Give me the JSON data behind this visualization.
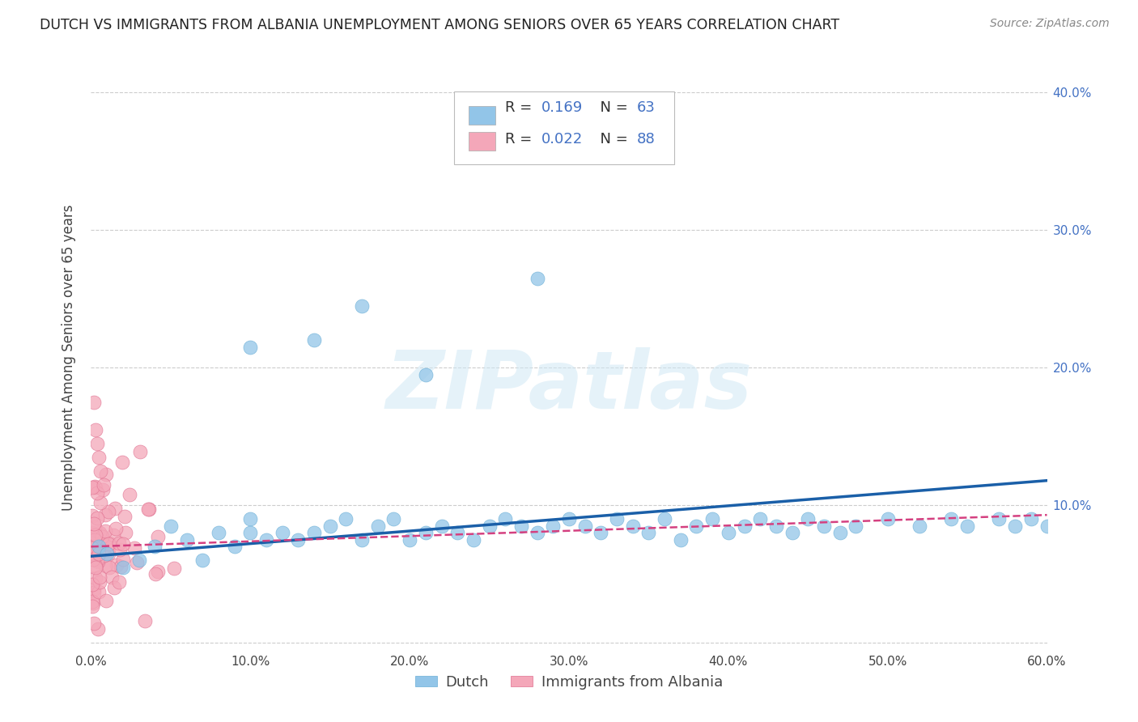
{
  "title": "DUTCH VS IMMIGRANTS FROM ALBANIA UNEMPLOYMENT AMONG SENIORS OVER 65 YEARS CORRELATION CHART",
  "source": "Source: ZipAtlas.com",
  "ylabel": "Unemployment Among Seniors over 65 years",
  "xlim": [
    0.0,
    0.6
  ],
  "ylim": [
    -0.005,
    0.42
  ],
  "xtick_vals": [
    0.0,
    0.1,
    0.2,
    0.3,
    0.4,
    0.5,
    0.6
  ],
  "xtick_labels": [
    "0.0%",
    "10.0%",
    "20.0%",
    "30.0%",
    "40.0%",
    "50.0%",
    "60.0%"
  ],
  "ytick_vals": [
    0.0,
    0.1,
    0.2,
    0.3,
    0.4
  ],
  "ytick_labels": [
    "10.0%",
    "20.0%",
    "30.0%",
    "40.0%"
  ],
  "dutch_color": "#92c5e8",
  "dutch_edge": "#6aaed6",
  "albania_color": "#f4a7b9",
  "albania_edge": "#e07090",
  "dutch_r": 0.169,
  "dutch_n": 63,
  "albania_r": 0.022,
  "albania_n": 88,
  "trend_dutch_color": "#1a5fa8",
  "trend_albania_color": "#d44080",
  "watermark": "ZIPatlas",
  "dutch_trend_y0": 0.063,
  "dutch_trend_y1": 0.118,
  "albania_trend_y0": 0.07,
  "albania_trend_y1": 0.093
}
